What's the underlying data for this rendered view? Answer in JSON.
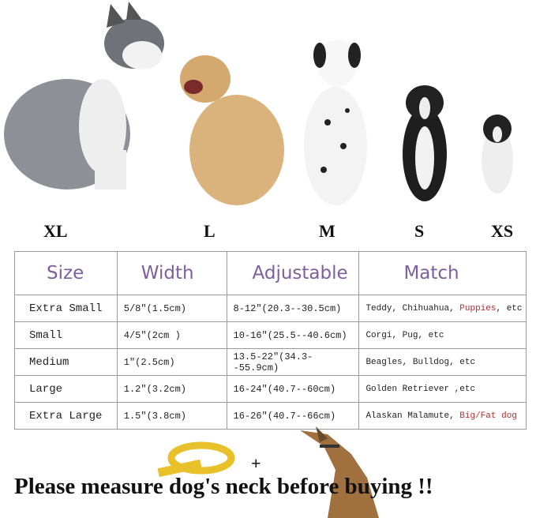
{
  "size_labels": [
    "XL",
    "L",
    "M",
    "S",
    "XS"
  ],
  "table": {
    "headers": [
      "Size",
      "Width",
      "Adjustable",
      "Match"
    ],
    "rows": [
      {
        "size": "Extra Small",
        "width": "5/8″(1.5cm)",
        "adjustable": "8-12″(20.3--30.5cm)",
        "match": "Teddy, Chihuahua, ",
        "match_highlight": "Puppies",
        "match_tail": ", etc"
      },
      {
        "size": "Small",
        "width": "4/5″(2cm )",
        "adjustable": "10-16″(25.5--40.6cm)",
        "match": "Corgi, Pug, etc",
        "match_highlight": "",
        "match_tail": ""
      },
      {
        "size": "Medium",
        "width": "1″(2.5cm)",
        "adjustable": "13.5-22″(34.3--55.9cm)",
        "match": "Beagles, Bulldog, etc",
        "match_highlight": "",
        "match_tail": ""
      },
      {
        "size": "Large",
        "width": "1.2″(3.2cm)",
        "adjustable": "16-24″(40.7--60cm)",
        "match": "Golden Retriever ,etc",
        "match_highlight": "",
        "match_tail": ""
      },
      {
        "size": "Extra Large",
        "width": "1.5″(3.8cm)",
        "adjustable": "16-26″(40.7--66cm)",
        "match": "Alaskan Malamute, ",
        "match_highlight": "Big/Fat dog",
        "match_tail": ""
      }
    ]
  },
  "plus": "+",
  "footer": "Please measure dog's neck before buying !!",
  "colors": {
    "header_text": "#7e5f9c",
    "highlight": "#b03030",
    "tape": "#e8c02a",
    "dog_silhouette": "#a0703e"
  }
}
